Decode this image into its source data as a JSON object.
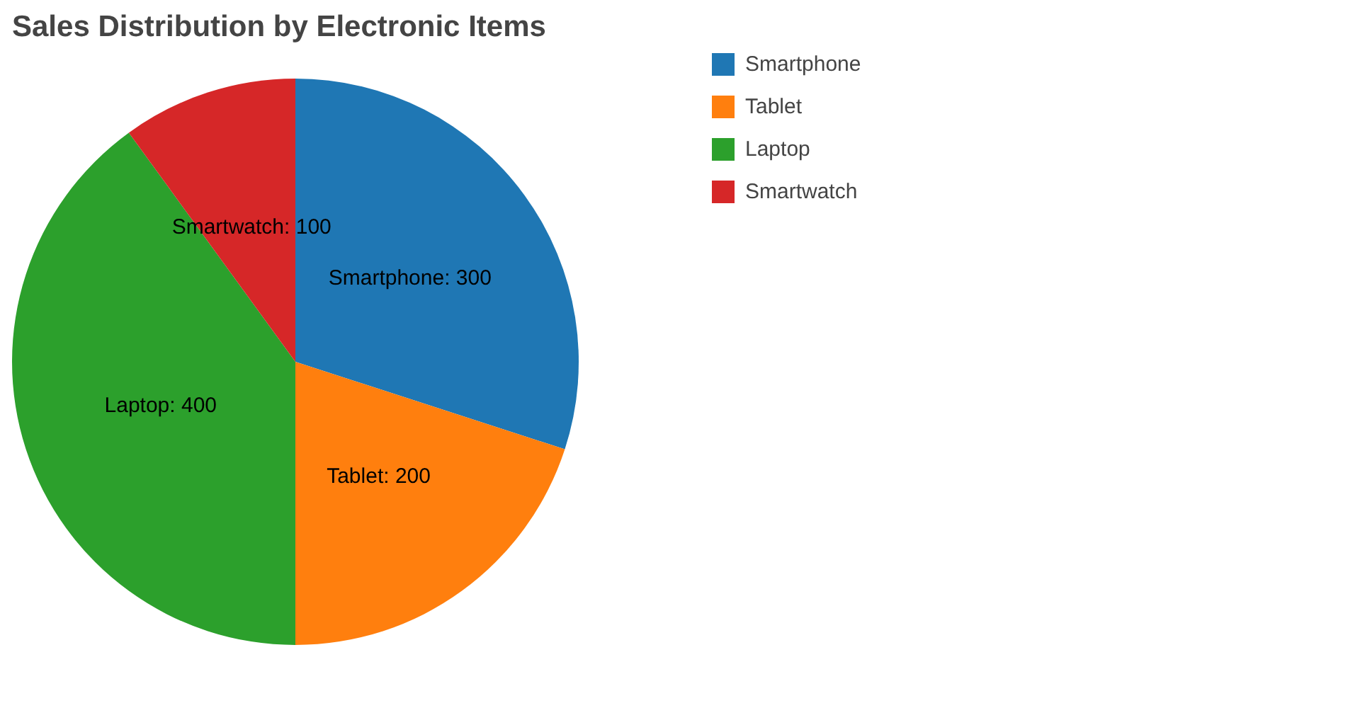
{
  "chart_data": {
    "type": "pie",
    "title": "Sales Distribution by Electronic Items",
    "categories": [
      "Smartphone",
      "Tablet",
      "Laptop",
      "Smartwatch"
    ],
    "values": [
      300,
      200,
      400,
      100
    ],
    "colors": [
      "#1f77b4",
      "#ff7f0e",
      "#2ca02c",
      "#d62728"
    ],
    "value_labels": [
      "Smartphone: 300",
      "Tablet: 200",
      "Laptop: 400",
      "Smartwatch: 100"
    ],
    "legend": "top right"
  }
}
